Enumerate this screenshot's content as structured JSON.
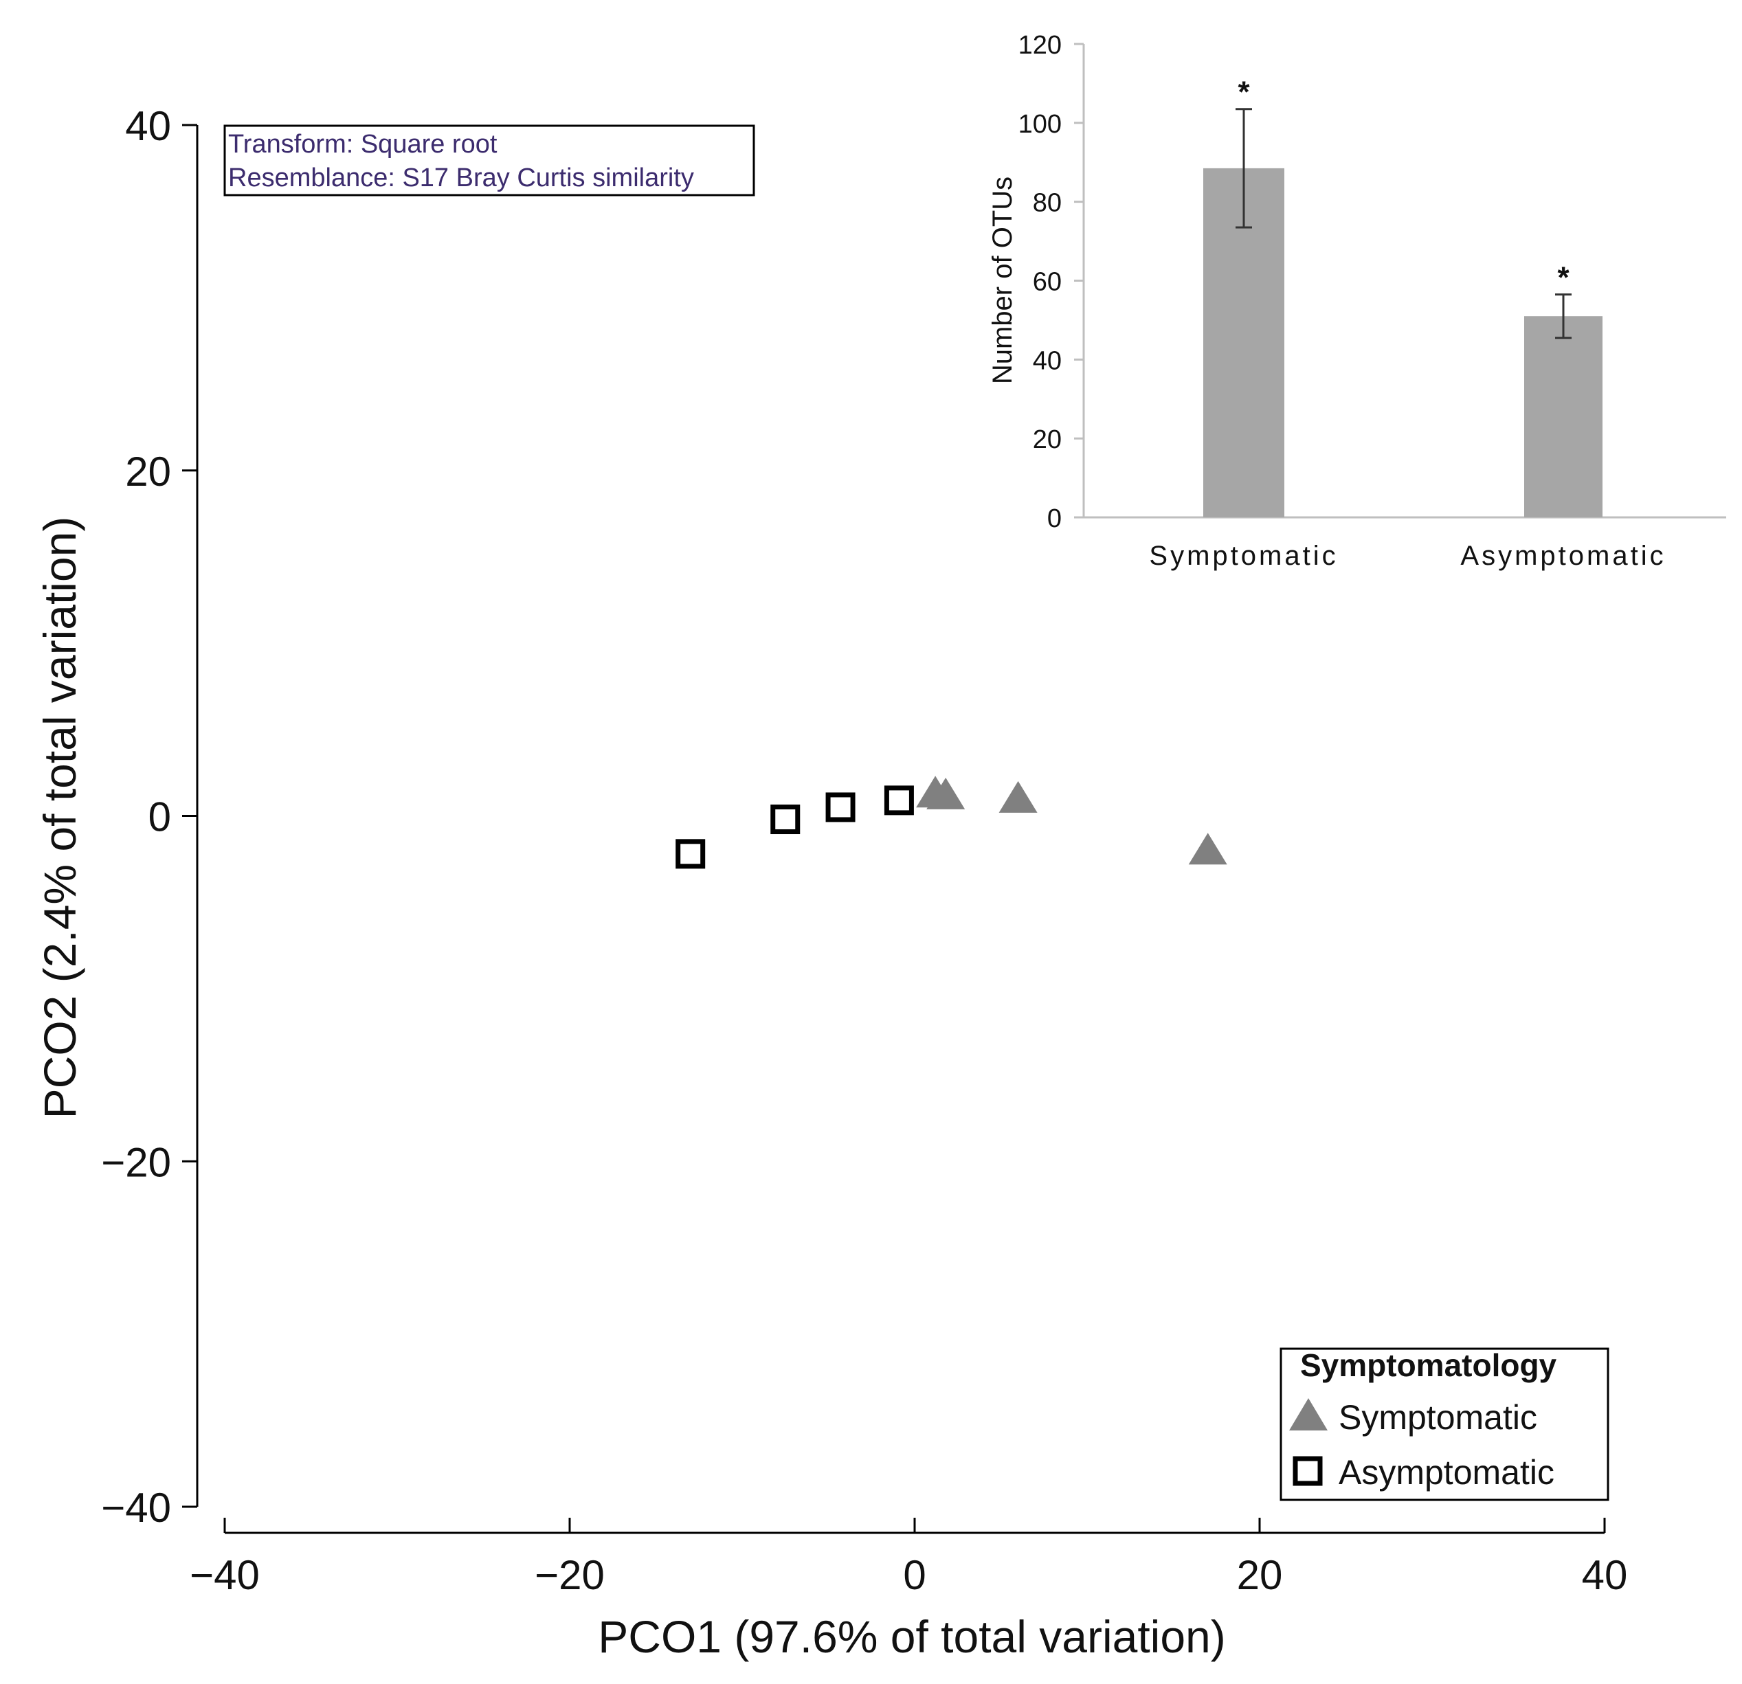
{
  "chart_data": [
    {
      "type": "scatter",
      "title": "",
      "xlabel": "PCO1 (97.6% of total variation)",
      "ylabel": "PCO2 (2.4% of total variation)",
      "xlim": [
        -40,
        40
      ],
      "ylim": [
        -40,
        40
      ],
      "x_ticks": [
        -40,
        -20,
        0,
        20,
        40
      ],
      "y_ticks": [
        40,
        20,
        0,
        -20,
        -40
      ],
      "x_tick_labels": [
        "−40",
        "−20",
        "0",
        "20",
        "40"
      ],
      "y_tick_labels": [
        "40",
        "20",
        "0",
        "−20",
        "−40"
      ],
      "grid": false,
      "annotation": {
        "line1": "Transform: Square root",
        "line2": "Resemblance: S17 Bray Curtis similarity"
      },
      "legend": {
        "title": "Symptomatology",
        "position": "bottom-right",
        "entries": [
          "Symptomatic",
          "Asymptomatic"
        ]
      },
      "series": [
        {
          "name": "Symptomatic",
          "marker": "triangle",
          "color": "#808080",
          "points": [
            {
              "x": 1.2,
              "y": 1.4
            },
            {
              "x": 1.8,
              "y": 1.3
            },
            {
              "x": 6.0,
              "y": 1.1
            },
            {
              "x": 17.0,
              "y": -1.9
            }
          ]
        },
        {
          "name": "Asymptomatic",
          "marker": "open-square",
          "color": "#000000",
          "points": [
            {
              "x": -13.0,
              "y": -2.2
            },
            {
              "x": -7.5,
              "y": -0.2
            },
            {
              "x": -4.3,
              "y": 0.5
            },
            {
              "x": -0.9,
              "y": 0.9
            }
          ]
        }
      ]
    },
    {
      "type": "bar",
      "title": "",
      "xlabel": "",
      "ylabel": "Number of OTUs",
      "ylim": [
        0,
        120
      ],
      "y_ticks": [
        0,
        20,
        40,
        60,
        80,
        100,
        120
      ],
      "y_tick_labels": [
        "0",
        "20",
        "40",
        "60",
        "80",
        "100",
        "120"
      ],
      "categories": [
        "Symptomatic",
        "Asymptomatic"
      ],
      "values": [
        88.5,
        51
      ],
      "error": [
        15,
        5.5
      ],
      "significance": [
        "*",
        "*"
      ],
      "bar_color": "#a6a6a6",
      "grid": false
    }
  ]
}
